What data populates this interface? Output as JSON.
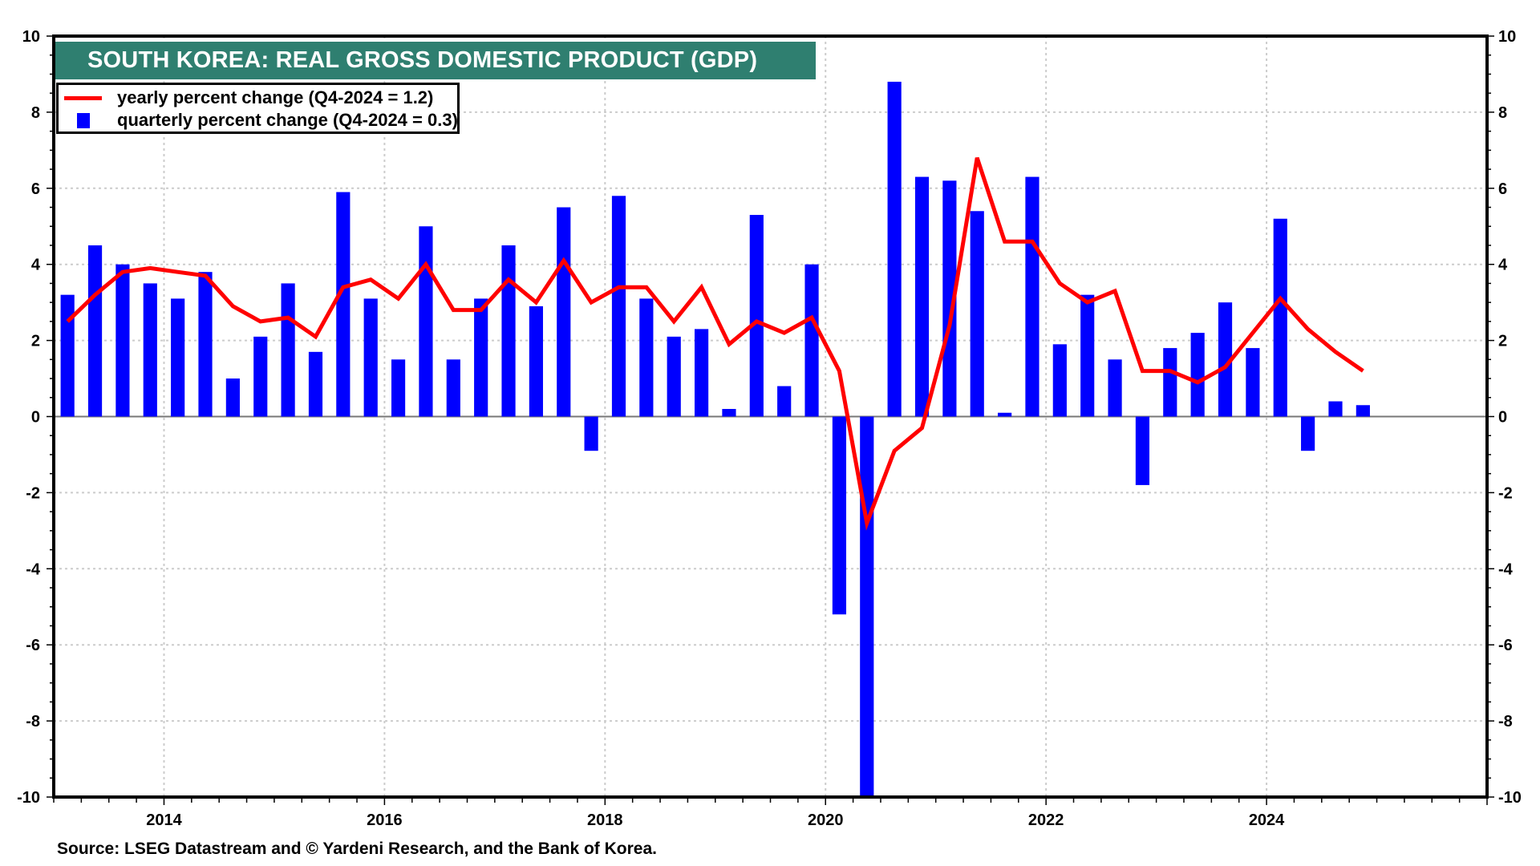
{
  "chart_data": {
    "type": "bar",
    "title": "SOUTH KOREA: REAL GROSS DOMESTIC PRODUCT (GDP)",
    "xlabel": "",
    "ylabel": "",
    "source": "Source: LSEG Datastream and © Yardeni Research, and  the Bank of Korea.",
    "xlim": [
      2013,
      2026
    ],
    "ylim": [
      -10,
      10
    ],
    "y_ticks": [
      -10,
      -8,
      -6,
      -4,
      -2,
      0,
      2,
      4,
      6,
      8,
      10
    ],
    "y_tick_labels_left": [
      "-10",
      "-8",
      "-6",
      "-4",
      "-2",
      "0",
      "2",
      "4",
      "6",
      "8",
      "10"
    ],
    "y_tick_labels_right": [
      "-10",
      "-8",
      "-6",
      "-4",
      "-2",
      "0",
      "2",
      "4",
      "6",
      "8",
      "10"
    ],
    "x_ticks": [
      2014,
      2016,
      2018,
      2020,
      2022,
      2024
    ],
    "x_tick_labels": [
      "2014",
      "2016",
      "2018",
      "2020",
      "2022",
      "2024"
    ],
    "grid": true,
    "legend_position": "top-left",
    "x_start": "Q1-2013",
    "x_end": "Q4-2024",
    "frequency": "quarterly",
    "series": [
      {
        "name": "quarterly percent change (Q4-2024 = 0.3)",
        "type": "bar",
        "color": "#0000ff",
        "values": [
          3.2,
          4.5,
          4.0,
          3.5,
          3.1,
          3.8,
          1.0,
          2.1,
          3.5,
          1.7,
          5.9,
          3.1,
          1.5,
          5.0,
          1.5,
          3.1,
          4.5,
          2.9,
          5.5,
          -0.9,
          5.8,
          3.1,
          2.1,
          2.3,
          0.2,
          5.3,
          0.8,
          4.0,
          -5.2,
          -10.0,
          8.8,
          6.3,
          6.2,
          5.4,
          0.1,
          6.3,
          1.9,
          3.2,
          1.5,
          -1.8,
          1.8,
          2.2,
          3.0,
          1.8,
          5.2,
          -0.9,
          0.4,
          0.3
        ],
        "note": "Q2-2020 bar extends below the -10 axis limit (clipped)"
      },
      {
        "name": "yearly percent change (Q4-2024 = 1.2)",
        "type": "line",
        "color": "#ff0000",
        "values": [
          2.5,
          3.2,
          3.8,
          3.9,
          3.8,
          3.7,
          2.9,
          2.5,
          2.6,
          2.1,
          3.4,
          3.6,
          3.1,
          4.0,
          2.8,
          2.8,
          3.6,
          3.0,
          4.1,
          3.0,
          3.4,
          3.4,
          2.5,
          3.4,
          1.9,
          2.5,
          2.2,
          2.6,
          1.2,
          -2.8,
          -0.9,
          -0.3,
          2.4,
          6.8,
          4.6,
          4.6,
          3.5,
          3.0,
          3.3,
          1.2,
          1.2,
          0.9,
          1.3,
          2.2,
          3.1,
          2.3,
          1.7,
          1.2
        ]
      }
    ],
    "legend": [
      {
        "label": "yearly percent change (Q4-2024 = 1.2)",
        "marker": "line",
        "color": "#ff0000"
      },
      {
        "label": "quarterly percent change (Q4-2024 = 0.3)",
        "marker": "square",
        "color": "#0000ff"
      }
    ],
    "colors": {
      "banner": "#2f7f70",
      "bars": "#0000ff",
      "line": "#ff0000",
      "grid": "#cccccc",
      "zero_line": "#777777"
    }
  }
}
